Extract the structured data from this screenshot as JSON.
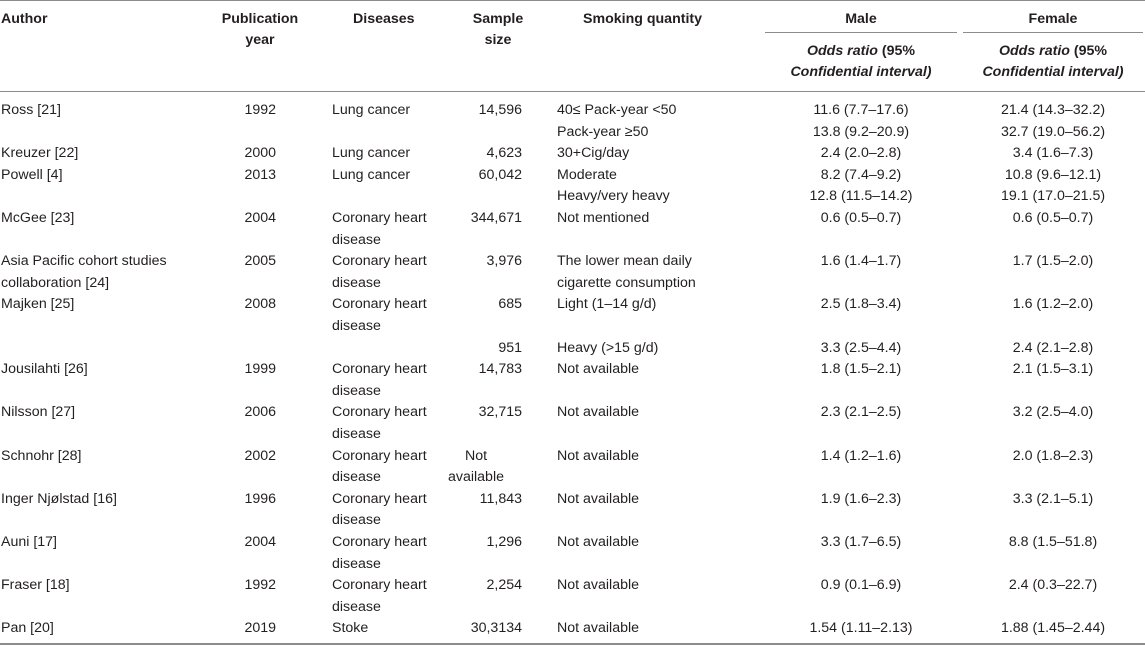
{
  "headers": {
    "author": "Author",
    "year": "Publication year",
    "diseases": "Diseases",
    "sample": "Sample size",
    "smoking": "Smoking quantity",
    "male": "Male",
    "female": "Female",
    "or_label_1": "Odds ratio",
    "or_label_2": "(95%",
    "or_label_3": "Confidential interval)"
  },
  "rows": [
    {
      "author": [
        "Ross [21]"
      ],
      "year": "1992",
      "disease": [
        "Lung cancer"
      ],
      "size": [
        "14,596"
      ],
      "smoking": [
        "40≤ Pack-year <50"
      ],
      "male": "11.6 (7.7–17.6)",
      "female": "21.4 (14.3–32.2)"
    },
    {
      "author": [
        ""
      ],
      "year": "",
      "disease": [
        ""
      ],
      "size": [
        ""
      ],
      "smoking": [
        "Pack-year ≥50"
      ],
      "male": "13.8 (9.2–20.9)",
      "female": "32.7 (19.0–56.2)"
    },
    {
      "author": [
        "Kreuzer [22]"
      ],
      "year": "2000",
      "disease": [
        "Lung cancer"
      ],
      "size": [
        "4,623"
      ],
      "smoking": [
        "30+Cig/day"
      ],
      "male": "2.4 (2.0–2.8)",
      "female": "3.4 (1.6–7.3)"
    },
    {
      "author": [
        "Powell [4]"
      ],
      "year": "2013",
      "disease": [
        "Lung cancer"
      ],
      "size": [
        "60,042"
      ],
      "smoking": [
        "Moderate"
      ],
      "male": "8.2 (7.4–9.2)",
      "female": "10.8 (9.6–12.1)"
    },
    {
      "author": [
        ""
      ],
      "year": "",
      "disease": [
        ""
      ],
      "size": [
        ""
      ],
      "smoking": [
        "Heavy/very heavy"
      ],
      "male": "12.8 (11.5–14.2)",
      "female": "19.1 (17.0–21.5)"
    },
    {
      "author": [
        "McGee [23]"
      ],
      "year": "2004",
      "disease": [
        "Coronary heart",
        "disease"
      ],
      "size": [
        "344,671"
      ],
      "smoking": [
        "Not mentioned"
      ],
      "male": "0.6 (0.5–0.7)",
      "female": "0.6 (0.5–0.7)"
    },
    {
      "author": [
        "Asia Pacific cohort studies",
        "collaboration [24]"
      ],
      "year": "2005",
      "disease": [
        "Coronary heart",
        "disease"
      ],
      "size": [
        "3,976"
      ],
      "smoking": [
        "The lower mean daily",
        "cigarette consumption"
      ],
      "male": "1.6 (1.4–1.7)",
      "female": "1.7 (1.5–2.0)"
    },
    {
      "author": [
        "Majken [25]"
      ],
      "year": "2008",
      "disease": [
        "Coronary heart",
        "disease"
      ],
      "size": [
        "685"
      ],
      "smoking": [
        "Light (1–14 g/d)"
      ],
      "male": "2.5 (1.8–3.4)",
      "female": "1.6 (1.2–2.0)"
    },
    {
      "author": [
        ""
      ],
      "year": "",
      "disease": [
        ""
      ],
      "size": [
        "951"
      ],
      "smoking": [
        "Heavy (>15 g/d)"
      ],
      "male": "3.3 (2.5–4.4)",
      "female": "2.4 (2.1–2.8)"
    },
    {
      "author": [
        "Jousilahti [26]"
      ],
      "year": "1999",
      "disease": [
        "Coronary heart",
        "disease"
      ],
      "size": [
        "14,783"
      ],
      "smoking": [
        "Not available"
      ],
      "male": "1.8 (1.5–2.1)",
      "female": "2.1 (1.5–3.1)"
    },
    {
      "author": [
        "Nilsson [27]"
      ],
      "year": "2006",
      "disease": [
        "Coronary heart",
        "disease"
      ],
      "size": [
        "32,715"
      ],
      "smoking": [
        "Not available"
      ],
      "male": "2.3 (2.1–2.5)",
      "female": "3.2 (2.5–4.0)"
    },
    {
      "author": [
        "Schnohr [28]"
      ],
      "year": "2002",
      "disease": [
        "Coronary heart",
        "disease"
      ],
      "size": [
        "Not",
        "available"
      ],
      "smoking": [
        "Not available"
      ],
      "male": "1.4 (1.2–1.6)",
      "female": "2.0 (1.8–2.3)"
    },
    {
      "author": [
        "Inger Njølstad [16]"
      ],
      "year": "1996",
      "disease": [
        "Coronary heart",
        "disease"
      ],
      "size": [
        "11,843"
      ],
      "smoking": [
        "Not available"
      ],
      "male": "1.9 (1.6–2.3)",
      "female": "3.3 (2.1–5.1)"
    },
    {
      "author": [
        "Auni [17]"
      ],
      "year": "2004",
      "disease": [
        "Coronary heart",
        "disease"
      ],
      "size": [
        "1,296"
      ],
      "smoking": [
        "Not available"
      ],
      "male": "3.3 (1.7–6.5)",
      "female": "8.8 (1.5–51.8)"
    },
    {
      "author": [
        "Fraser [18]"
      ],
      "year": "1992",
      "disease": [
        "Coronary heart",
        "disease"
      ],
      "size": [
        "2,254"
      ],
      "smoking": [
        "Not available"
      ],
      "male": "0.9 (0.1–6.9)",
      "female": "2.4 (0.3–22.7)"
    },
    {
      "author": [
        "Pan [20]"
      ],
      "year": "2019",
      "disease": [
        "Stoke"
      ],
      "size": [
        "30,3134"
      ],
      "smoking": [
        "Not available"
      ],
      "male": "1.54 (1.11–2.13)",
      "female": "1.88 (1.45–2.44)"
    }
  ]
}
